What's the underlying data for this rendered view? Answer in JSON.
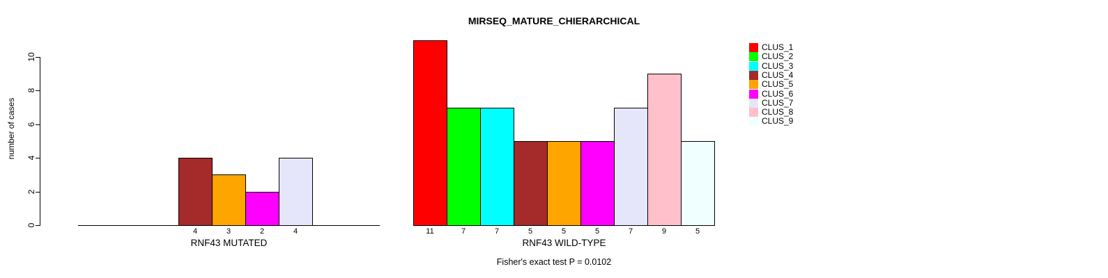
{
  "chart_data": {
    "type": "bar",
    "title": "MIRSEQ_MATURE_CHIERARCHICAL",
    "ylabel": "number of cases",
    "ylim": [
      0,
      10
    ],
    "yticks": [
      0,
      2,
      4,
      6,
      8,
      10
    ],
    "grid": false,
    "legend_position": "top-right",
    "legend_entries": [
      {
        "label": "CLUS_1",
        "color": "#FF0000"
      },
      {
        "label": "CLUS_2",
        "color": "#00FF00"
      },
      {
        "label": "CLUS_3",
        "color": "#00FFFF"
      },
      {
        "label": "CLUS_4",
        "color": "#A52A2A"
      },
      {
        "label": "CLUS_5",
        "color": "#FFA500"
      },
      {
        "label": "CLUS_6",
        "color": "#FF00FF"
      },
      {
        "label": "CLUS_7",
        "color": "#E6E6FA"
      },
      {
        "label": "CLUS_8",
        "color": "#FFC0CB"
      },
      {
        "label": "CLUS_9",
        "color": "#F0FFFF"
      }
    ],
    "groups": [
      {
        "label": "RNF43 MUTATED",
        "slots": 9,
        "bars": [
          {
            "slot": 4,
            "cluster": "CLUS_4",
            "value": 4
          },
          {
            "slot": 5,
            "cluster": "CLUS_5",
            "value": 3
          },
          {
            "slot": 6,
            "cluster": "CLUS_6",
            "value": 2
          },
          {
            "slot": 7,
            "cluster": "CLUS_7",
            "value": 4
          }
        ]
      },
      {
        "label": "RNF43 WILD-TYPE",
        "slots": 9,
        "bars": [
          {
            "slot": 1,
            "cluster": "CLUS_1",
            "value": 11
          },
          {
            "slot": 2,
            "cluster": "CLUS_2",
            "value": 7
          },
          {
            "slot": 3,
            "cluster": "CLUS_3",
            "value": 7
          },
          {
            "slot": 4,
            "cluster": "CLUS_4",
            "value": 5
          },
          {
            "slot": 5,
            "cluster": "CLUS_5",
            "value": 5
          },
          {
            "slot": 6,
            "cluster": "CLUS_6",
            "value": 5
          },
          {
            "slot": 7,
            "cluster": "CLUS_7",
            "value": 7
          },
          {
            "slot": 8,
            "cluster": "CLUS_8",
            "value": 9
          },
          {
            "slot": 9,
            "cluster": "CLUS_9",
            "value": 5
          }
        ]
      }
    ],
    "annotation": "Fisher's exact test P = 0.0102"
  }
}
